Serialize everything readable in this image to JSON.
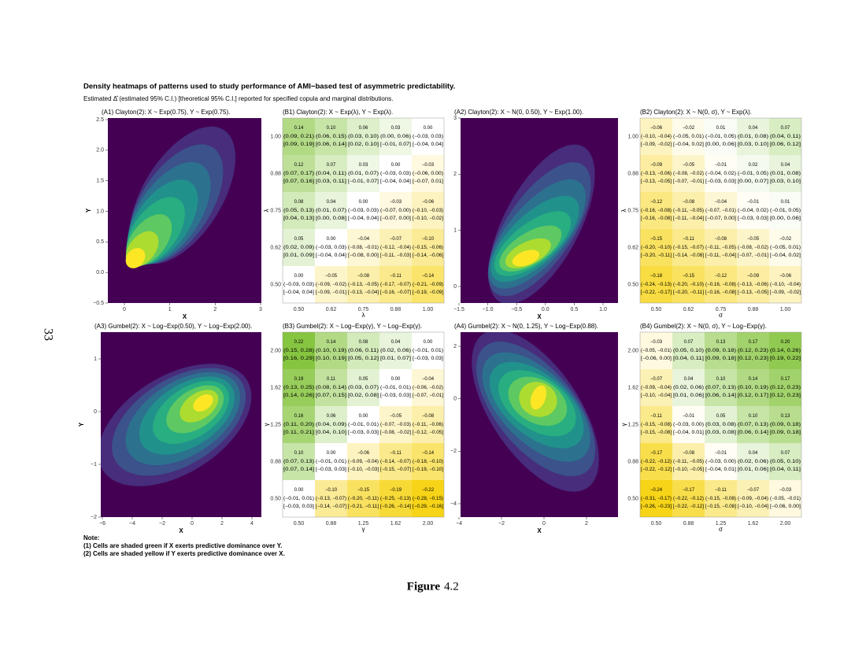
{
  "title": "Density heatmaps of patterns used to study performance of AMI−based test of asymmetric predictability.",
  "subtitle": "Estimated Δ̂  (estimated 95% C.I.) [theoretical 95% C.I.] reported for specified copula and marginal distributions.",
  "density_panels": [
    {
      "title": "(A1) Clayton(2): X ~ Exp(0.75), Y ~ Exp(0.75).",
      "x_label": "X",
      "y_label": "Y",
      "x_ticks": [
        "0",
        "1",
        "2",
        "3"
      ],
      "y_ticks": [
        "−0.5",
        "0.0",
        "0.5",
        "1.0",
        "1.5",
        "2.0",
        "2.5"
      ]
    },
    {
      "title": "(A2) Clayton(2): X ~ N(0, 0.50), Y ~ Exp(1.00).",
      "x_label": "X",
      "y_label": "Y",
      "x_ticks": [
        "−1.5",
        "−1.0",
        "−0.5",
        "0.0",
        "0.5",
        "1.0"
      ],
      "y_ticks": [
        "0",
        "1",
        "2",
        "3"
      ]
    },
    {
      "title": "(A3) Gumbel(2): X ~ Log−Exp(0.50), Y ~ Log−Exp(2.00).",
      "x_label": "X",
      "y_label": "Y",
      "x_ticks": [
        "−6",
        "−4",
        "−2",
        "0",
        "2",
        "4"
      ],
      "y_ticks": [
        "−2",
        "−1",
        "0",
        "1"
      ]
    },
    {
      "title": "(A4) Gumbel(2): X ~ N(0, 1.25), Y ~ Log−Exp(0.88).",
      "x_label": "X",
      "y_label": "Y",
      "x_ticks": [
        "−4",
        "−2",
        "0",
        "2"
      ],
      "y_ticks": [
        "−4",
        "−2",
        "0",
        "2"
      ]
    }
  ],
  "heatmaps": [
    {
      "title": "(B1) Clayton(2): X ~ Exp(λ), Y ~ Exp(λ).",
      "x_label": "λ",
      "y_label": "λ",
      "col_labels": [
        "0.50",
        "0.62",
        "0.75",
        "0.88",
        "1.00"
      ],
      "row_labels": [
        "1.00",
        "0.88",
        "0.75",
        "0.62",
        "0.50"
      ],
      "cells": [
        [
          [
            "0.14",
            "(0.09, 0.21)",
            "[0.09, 0.19]"
          ],
          [
            "0.10",
            "(0.06, 0.15)",
            "[0.06, 0.14]"
          ],
          [
            "0.06",
            "(0.03, 0.10)",
            "[0.02, 0.10]"
          ],
          [
            "0.03",
            "(0.00, 0.06)",
            "[−0.01, 0.07]"
          ],
          [
            "0.00",
            "(−0.03, 0.03)",
            "[−0.04, 0.04]"
          ]
        ],
        [
          [
            "0.12",
            "(0.07, 0.17)",
            "[0.07, 0.16]"
          ],
          [
            "0.07",
            "(0.04, 0.11)",
            "[0.03, 0.11]"
          ],
          [
            "0.03",
            "(0.01, 0.07)",
            "[−0.01, 0.07]"
          ],
          [
            "0.00",
            "(−0.03, 0.03)",
            "[−0.04, 0.04]"
          ],
          [
            "−0.03",
            "(−0.06, 0.00)",
            "[−0.07, 0.01]"
          ]
        ],
        [
          [
            "0.08",
            "(0.05, 0.13)",
            "[0.04, 0.13]"
          ],
          [
            "0.04",
            "(0.01, 0.07)",
            "[0.00, 0.08]"
          ],
          [
            "0.00",
            "(−0.03, 0.03)",
            "[−0.04, 0.04]"
          ],
          [
            "−0.03",
            "(−0.07, 0.00)",
            "[−0.07, 0.00]"
          ],
          [
            "−0.06",
            "(−0.10, −0.03)",
            "[−0.10, −0.02]"
          ]
        ],
        [
          [
            "0.05",
            "(0.02, 0.09)",
            "[0.01, 0.09]"
          ],
          [
            "0.00",
            "(−0.03, 0.03)",
            "[−0.04, 0.04]"
          ],
          [
            "−0.04",
            "(−0.08, −0.01)",
            "[−0.08, 0.00]"
          ],
          [
            "−0.07",
            "(−0.12, −0.04)",
            "[−0.11, −0.03]"
          ],
          [
            "−0.10",
            "(−0.15, −0.06)",
            "[−0.14, −0.06]"
          ]
        ],
        [
          [
            "0.00",
            "(−0.03, 0.03)",
            "[−0.04, 0.04]"
          ],
          [
            "−0.05",
            "(−0.09, −0.02)",
            "[−0.09, −0.01]"
          ],
          [
            "−0.08",
            "(−0.13, −0.05)",
            "[−0.13, −0.04]"
          ],
          [
            "−0.11",
            "(−0.17, −0.07)",
            "[−0.16, −0.07]"
          ],
          [
            "−0.14",
            "(−0.21, −0.09)",
            "[−0.19, −0.09]"
          ]
        ]
      ]
    },
    {
      "title": "(B2) Clayton(2): X ~ N(0, σ), Y ~ Exp(λ).",
      "x_label": "σ",
      "y_label": "λ",
      "col_labels": [
        "0.50",
        "0.62",
        "0.75",
        "0.88",
        "1.00"
      ],
      "row_labels": [
        "1.00",
        "0.88",
        "0.75",
        "0.62",
        "0.50"
      ],
      "cells": [
        [
          [
            "−0.06",
            "(−0.10, −0.04)",
            "[−0.09, −0.02]"
          ],
          [
            "−0.02",
            "(−0.05, 0.01)",
            "[−0.04, 0.02]"
          ],
          [
            "0.01",
            "(−0.01, 0.05)",
            "[0.00, 0.06]"
          ],
          [
            "0.04",
            "(0.01, 0.08)",
            "[0.03, 0.10]"
          ],
          [
            "0.07",
            "(0.04, 0.11)",
            "[0.06, 0.12]"
          ]
        ],
        [
          [
            "−0.09",
            "(−0.13, −0.06)",
            "[−0.13, −0.05]"
          ],
          [
            "−0.05",
            "(−0.08, −0.02)",
            "[−0.07, −0.01]"
          ],
          [
            "−0.01",
            "(−0.04, 0.02)",
            "[−0.03, 0.03]"
          ],
          [
            "0.02",
            "(−0.01, 0.05)",
            "[0.00, 0.07]"
          ],
          [
            "0.04",
            "(0.01, 0.08)",
            "[0.03, 0.10]"
          ]
        ],
        [
          [
            "−0.12",
            "(−0.16, −0.08)",
            "[−0.16, −0.08]"
          ],
          [
            "−0.08",
            "(−0.11, −0.05)",
            "[−0.11, −0.04]"
          ],
          [
            "−0.04",
            "(−0.07, −0.01)",
            "[−0.07, 0.00]"
          ],
          [
            "−0.01",
            "(−0.04, 0.02)",
            "[−0.03, 0.03]"
          ],
          [
            "0.01",
            "(−0.01, 0.05)",
            "[0.00, 0.06]"
          ]
        ],
        [
          [
            "−0.15",
            "(−0.20, −0.10)",
            "[−0.20, −0.11]"
          ],
          [
            "−0.11",
            "(−0.15, −0.07)",
            "[−0.14, −0.08]"
          ],
          [
            "−0.08",
            "(−0.11, −0.05)",
            "[−0.11, −0.04]"
          ],
          [
            "−0.05",
            "(−0.08, −0.02)",
            "[−0.07, −0.01]"
          ],
          [
            "−0.02",
            "(−0.05, 0.01)",
            "[−0.04, 0.02]"
          ]
        ],
        [
          [
            "−0.18",
            "(−0.24, −0.13)",
            "[−0.22, −0.17]"
          ],
          [
            "−0.15",
            "(−0.20, −0.10)",
            "[−0.20, −0.11]"
          ],
          [
            "−0.12",
            "(−0.16, −0.08)",
            "[−0.16, −0.08]"
          ],
          [
            "−0.09",
            "(−0.13, −0.06)",
            "[−0.13, −0.05]"
          ],
          [
            "−0.06",
            "(−0.10, −0.04)",
            "[−0.09, −0.02]"
          ]
        ]
      ]
    },
    {
      "title": "(B3) Gumbel(2): X ~ Log−Exp(γ), Y ~ Log−Exp(γ).",
      "x_label": "γ",
      "y_label": "γ",
      "col_labels": [
        "0.50",
        "0.88",
        "1.25",
        "1.62",
        "2.00"
      ],
      "row_labels": [
        "2.00",
        "1.62",
        "1.25",
        "0.88",
        "0.50"
      ],
      "cells": [
        [
          [
            "0.22",
            "(0.15, 0.28)",
            "[0.16, 0.29]"
          ],
          [
            "0.14",
            "(0.10, 0.19)",
            "[0.10, 0.19]"
          ],
          [
            "0.08",
            "(0.06, 0.11)",
            "[0.05, 0.12]"
          ],
          [
            "0.04",
            "(0.02, 0.06)",
            "[0.01, 0.07]"
          ],
          [
            "0.00",
            "(−0.01, 0.01)",
            "[−0.03, 0.03]"
          ]
        ],
        [
          [
            "0.19",
            "(0.13, 0.25)",
            "[0.14, 0.26]"
          ],
          [
            "0.11",
            "(0.08, 0.14)",
            "[0.07, 0.15]"
          ],
          [
            "0.05",
            "(0.03, 0.07)",
            "[0.02, 0.08]"
          ],
          [
            "0.00",
            "(−0.01, 0.01)",
            "[−0.03, 0.03]"
          ],
          [
            "−0.04",
            "(−0.06, −0.02)",
            "[−0.07, −0.01]"
          ]
        ],
        [
          [
            "0.16",
            "(0.11, 0.20)",
            "[0.11, 0.21]"
          ],
          [
            "0.06",
            "(0.04, 0.09)",
            "[0.04, 0.10]"
          ],
          [
            "0.00",
            "(−0.01, 0.01)",
            "[−0.03, 0.03]"
          ],
          [
            "−0.05",
            "(−0.07, −0.03)",
            "[−0.08, −0.02]"
          ],
          [
            "−0.08",
            "(−0.11, −0.06)",
            "[−0.12, −0.05]"
          ]
        ],
        [
          [
            "0.10",
            "(0.07, 0.13)",
            "[0.07, 0.14]"
          ],
          [
            "0.00",
            "(−0.01, 0.01)",
            "[−0.03, 0.03]"
          ],
          [
            "−0.06",
            "(−0.09, −0.04)",
            "[−0.10, −0.03]"
          ],
          [
            "−0.11",
            "(−0.14, −0.07)",
            "[−0.15, −0.07]"
          ],
          [
            "−0.14",
            "(−0.18, −0.10)",
            "[−0.19, −0.10]"
          ]
        ],
        [
          [
            "0.00",
            "(−0.01, 0.01)",
            "[−0.03, 0.03]"
          ],
          [
            "−0.10",
            "(−0.13, −0.07)",
            "[−0.14, −0.07]"
          ],
          [
            "−0.15",
            "(−0.20, −0.11)",
            "[−0.21, −0.11]"
          ],
          [
            "−0.19",
            "(−0.25, −0.13)",
            "[−0.26, −0.14]"
          ],
          [
            "−0.22",
            "(−0.28, −0.15)",
            "[−0.29, −0.16]"
          ]
        ]
      ]
    },
    {
      "title": "(B4) Gumbel(2): X ~ N(0, σ), Y ~ Log−Exp(γ).",
      "x_label": "σ",
      "y_label": "γ",
      "col_labels": [
        "0.50",
        "0.88",
        "1.25",
        "1.62",
        "2.00"
      ],
      "row_labels": [
        "2.00",
        "1.62",
        "1.25",
        "0.88",
        "0.50"
      ],
      "cells": [
        [
          [
            "−0.03",
            "(−0.05, −0.01)",
            "[−0.06, 0.00]"
          ],
          [
            "0.07",
            "(0.05, 0.10)",
            "[0.04, 0.11]"
          ],
          [
            "0.13",
            "(0.09, 0.18)",
            "[0.09, 0.18]"
          ],
          [
            "0.17",
            "(0.12, 0.23)",
            "[0.12, 0.23]"
          ],
          [
            "0.20",
            "(0.14, 0.26)",
            "[0.19, 0.22]"
          ]
        ],
        [
          [
            "−0.07",
            "(−0.09, −0.04)",
            "[−0.10, −0.04]"
          ],
          [
            "0.04",
            "(0.02, 0.06)",
            "[0.01, 0.06]"
          ],
          [
            "0.10",
            "(0.07, 0.13)",
            "[0.06, 0.14]"
          ],
          [
            "0.14",
            "(0.10, 0.19)",
            "[0.12, 0.17]"
          ],
          [
            "0.17",
            "(0.12, 0.23)",
            "[0.12, 0.23]"
          ]
        ],
        [
          [
            "−0.11",
            "(−0.15, −0.08)",
            "[−0.15, −0.08]"
          ],
          [
            "−0.01",
            "(−0.03, 0.00)",
            "[−0.04, 0.01]"
          ],
          [
            "0.05",
            "(0.03, 0.08)",
            "[0.03, 0.08]"
          ],
          [
            "0.10",
            "(0.07, 0.13)",
            "[0.06, 0.14]"
          ],
          [
            "0.13",
            "(0.09, 0.18)",
            "[0.09, 0.18]"
          ]
        ],
        [
          [
            "−0.17",
            "(−0.22, −0.12)",
            "[−0.22, −0.12]"
          ],
          [
            "−0.08",
            "(−0.11, −0.05)",
            "[−0.10, −0.05]"
          ],
          [
            "−0.01",
            "(−0.03, 0.00)",
            "[−0.04, 0.01]"
          ],
          [
            "0.04",
            "(0.02, 0.06)",
            "[0.01, 0.06]"
          ],
          [
            "0.07",
            "(0.05, 0.10)",
            "[0.04, 0.11]"
          ]
        ],
        [
          [
            "−0.24",
            "(−0.31, −0.17)",
            "[−0.26, −0.23]"
          ],
          [
            "−0.17",
            "(−0.22, −0.12)",
            "[−0.22, −0.12]"
          ],
          [
            "−0.11",
            "(−0.15, −0.08)",
            "[−0.15, −0.08]"
          ],
          [
            "−0.07",
            "(−0.09, −0.04)",
            "[−0.10, −0.04]"
          ],
          [
            "−0.03",
            "(−0.05, −0.01)",
            "[−0.06, 0.00]"
          ]
        ]
      ]
    }
  ],
  "note_heading": "Note:",
  "notes": [
    "(1) Cells are shaded green if X exerts predictive dominance over Y.",
    "(2) Cells are shaded yellow if Y exerts predictive dominance over X."
  ],
  "caption_label": "Figure",
  "caption_number": "4.2",
  "page_number": "33"
}
